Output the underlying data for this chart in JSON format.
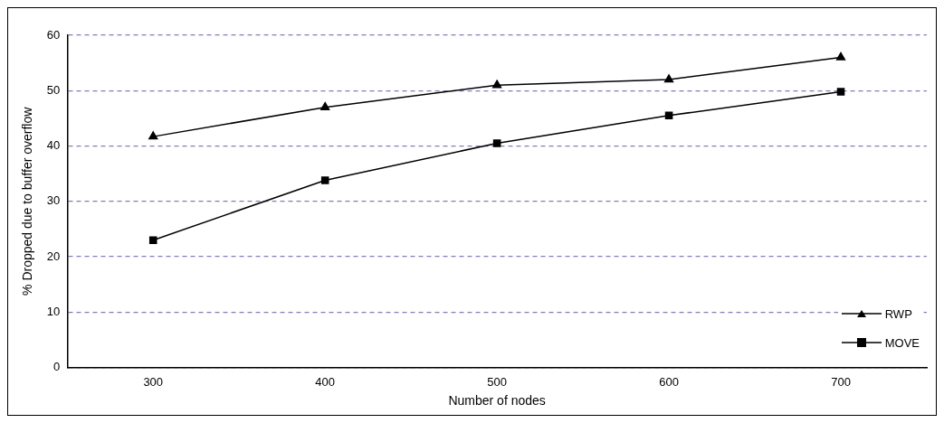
{
  "chart_data": {
    "type": "line",
    "xlabel": "Number of nodes",
    "ylabel": "% Dropped due to buffer overflow",
    "categories": [
      "300",
      "400",
      "500",
      "600",
      "700"
    ],
    "series": [
      {
        "name": "RWP",
        "color": "#000000",
        "marker": "triangle",
        "values": [
          41.7,
          47,
          51,
          52,
          56
        ]
      },
      {
        "name": "MOVE",
        "color": "#000000",
        "marker": "square",
        "values": [
          23,
          33.8,
          40.5,
          45.5,
          49.8
        ]
      }
    ],
    "ylim": [
      0,
      60
    ],
    "yticks": [
      0,
      10,
      20,
      30,
      40,
      50,
      60
    ],
    "grid": "y",
    "legend": "bottom right",
    "line_style": "solid"
  }
}
